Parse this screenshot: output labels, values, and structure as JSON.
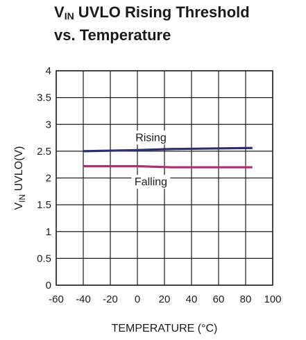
{
  "chart_data": {
    "type": "line",
    "title_main": "V",
    "title_sub": "IN",
    "title_rest": " UVLO Rising Threshold",
    "title_line2": "vs. Temperature",
    "ylabel_main": "V",
    "ylabel_sub": "IN",
    "ylabel_rest": " UVLO(V)",
    "xlabel": "TEMPERATURE (°C)",
    "xlim": [
      -60,
      100
    ],
    "ylim": [
      0,
      4
    ],
    "x_ticks": [
      "-60",
      "-40",
      "-20",
      "0",
      "20",
      "40",
      "60",
      "80",
      "100"
    ],
    "y_ticks": [
      "0",
      "0.5",
      "1",
      "1.5",
      "2",
      "2.5",
      "3",
      "3.5",
      "4"
    ],
    "grid": true,
    "series": [
      {
        "name": "Rising",
        "color": "#2b2f6e",
        "x": [
          -40,
          0,
          25,
          85
        ],
        "y": [
          2.5,
          2.52,
          2.54,
          2.56
        ]
      },
      {
        "name": "Falling",
        "color": "#a8326b",
        "x": [
          -40,
          0,
          25,
          85
        ],
        "y": [
          2.22,
          2.22,
          2.2,
          2.2
        ]
      }
    ]
  }
}
